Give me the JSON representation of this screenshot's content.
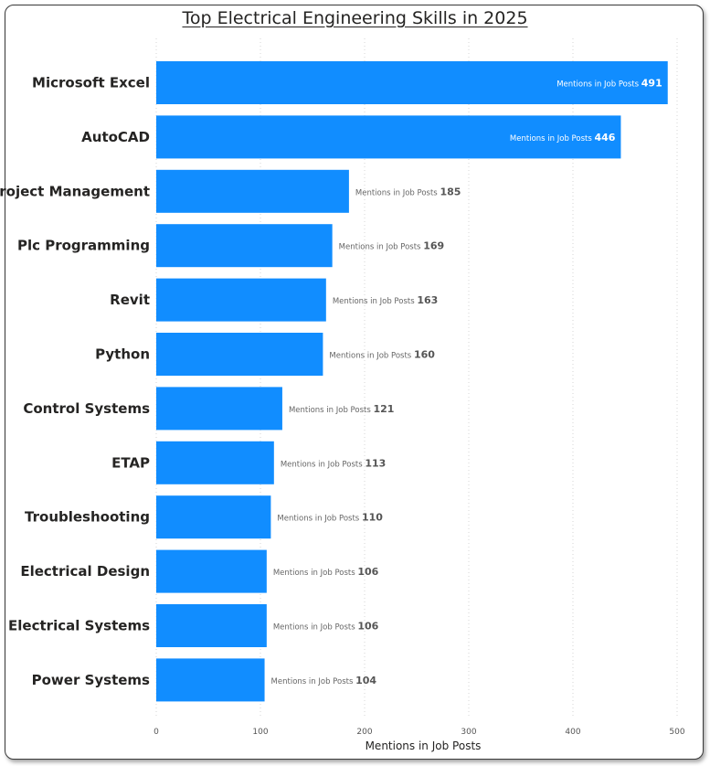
{
  "chart_data": {
    "type": "bar",
    "orientation": "horizontal",
    "title": "Top Electrical Engineering Skills in 2025",
    "xlabel": "Mentions in Job Posts",
    "ylabel": "",
    "xlim": [
      0,
      500
    ],
    "xticks": [
      0,
      100,
      200,
      300,
      400,
      500
    ],
    "grid": true,
    "bar_color": "#118DFF",
    "data_label_prefix": "Mentions in Job Posts",
    "categories": [
      "Microsoft Excel",
      "AutoCAD",
      "Project Management",
      "Plc Programming",
      "Revit",
      "Python",
      "Control Systems",
      "ETAP",
      "Troubleshooting",
      "Electrical Design",
      "Electrical Systems",
      "Power Systems"
    ],
    "values": [
      491,
      446,
      185,
      169,
      163,
      160,
      121,
      113,
      110,
      106,
      106,
      104
    ]
  }
}
